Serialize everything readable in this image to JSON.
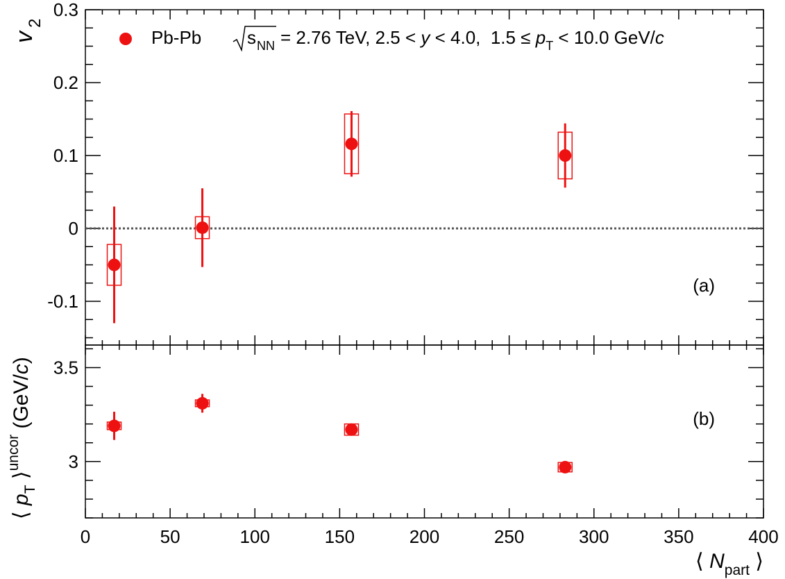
{
  "chart_data": [
    {
      "panel": "(a)",
      "type": "scatter",
      "ylabel": "v",
      "ylabel_sub": "2",
      "xlim": [
        0,
        400
      ],
      "ylim": [
        -0.16,
        0.3
      ],
      "y_ticks": [
        -0.1,
        0,
        0.1,
        0.2,
        0.3
      ],
      "y_tick_labels": [
        "-0.1",
        "0",
        "0.1",
        "0.2",
        "0.3"
      ],
      "zero_line": true,
      "legend": {
        "placement": "top",
        "marker_color": "#ee1111",
        "text_before_sqrt": "Pb-Pb",
        "sqrt_s": "s",
        "sqrt_sub": "NN",
        "text_after": "= 2.76 TeV, 2.5 < ",
        "y_var": "y",
        "text_mid": " < 4.0,  1.5 ≤ ",
        "pt_var": "p",
        "pt_sub": "T",
        "text_end": " < 10.0 GeV/",
        "c_var": "c"
      },
      "series": [
        {
          "x": [
            17,
            69,
            157,
            283
          ],
          "y": [
            -0.05,
            0.001,
            0.116,
            0.1
          ],
          "stat_err": [
            0.08,
            0.054,
            0.045,
            0.044
          ],
          "syst_err": [
            0.028,
            0.015,
            0.041,
            0.032
          ]
        }
      ]
    },
    {
      "panel": "(b)",
      "type": "scatter",
      "ylabel_pre": "⟨ ",
      "ylabel_var": "p",
      "ylabel_sub": "T",
      "ylabel_mid": " ⟩",
      "ylabel_sup": "uncor",
      "ylabel_post": " (GeV/",
      "ylabel_c": "c",
      "ylabel_end": ")",
      "xlabel_pre": "⟨ ",
      "xlabel_var": "N",
      "xlabel_sub": "part",
      "xlabel_end": " ⟩",
      "xlim": [
        0,
        400
      ],
      "ylim": [
        2.7,
        3.62
      ],
      "x_ticks": [
        0,
        50,
        100,
        150,
        200,
        250,
        300,
        350,
        400
      ],
      "x_tick_labels": [
        "0",
        "50",
        "100",
        "150",
        "200",
        "250",
        "300",
        "350",
        "400"
      ],
      "y_ticks": [
        3.0,
        3.5
      ],
      "y_tick_labels": [
        "3",
        "3.5"
      ],
      "series": [
        {
          "x": [
            17,
            69,
            157,
            283
          ],
          "y": [
            3.19,
            3.31,
            3.17,
            2.97
          ],
          "stat_err": [
            0.075,
            0.05,
            0.02,
            0.01
          ],
          "syst_err": [
            0.02,
            0.018,
            0.03,
            0.025
          ]
        }
      ]
    }
  ],
  "colors": {
    "data": "#ee1111",
    "zero_line": "#555555",
    "axis": "#000000"
  }
}
